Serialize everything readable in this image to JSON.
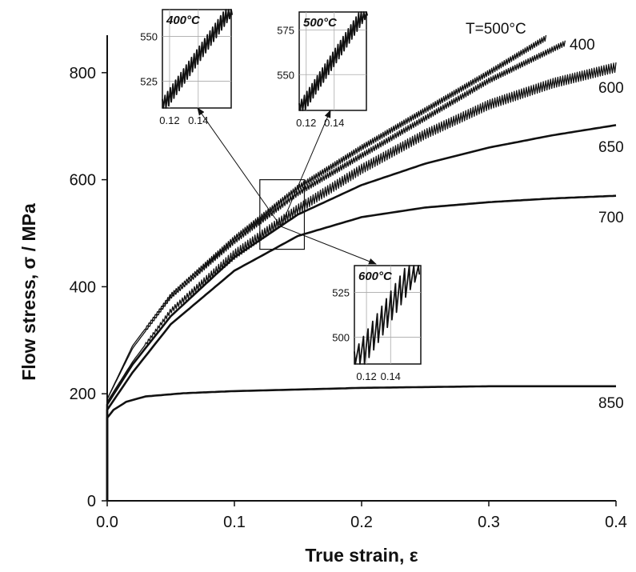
{
  "chart_data": {
    "type": "line",
    "xlabel": "True strain, ε",
    "ylabel": "Flow stress, σ / MPa",
    "xlim": [
      0,
      0.4
    ],
    "ylim": [
      0,
      870
    ],
    "x_ticks": [
      "0.0",
      "0.1",
      "0.2",
      "0.3",
      "0.4"
    ],
    "y_ticks": [
      "0",
      "200",
      "400",
      "600",
      "800"
    ],
    "grid": false,
    "series": [
      {
        "name": "T=500°C",
        "serrated": true,
        "points": [
          [
            0,
            190
          ],
          [
            0.02,
            290
          ],
          [
            0.05,
            385
          ],
          [
            0.1,
            490
          ],
          [
            0.15,
            585
          ],
          [
            0.2,
            660
          ],
          [
            0.25,
            730
          ],
          [
            0.3,
            800
          ],
          [
            0.345,
            865
          ]
        ]
      },
      {
        "name": "400",
        "serrated": true,
        "points": [
          [
            0,
            190
          ],
          [
            0.02,
            285
          ],
          [
            0.05,
            380
          ],
          [
            0.1,
            485
          ],
          [
            0.15,
            575
          ],
          [
            0.2,
            645
          ],
          [
            0.25,
            715
          ],
          [
            0.3,
            785
          ],
          [
            0.36,
            855
          ]
        ]
      },
      {
        "name": "600",
        "serrated": true,
        "points": [
          [
            0,
            185
          ],
          [
            0.02,
            260
          ],
          [
            0.05,
            355
          ],
          [
            0.1,
            460
          ],
          [
            0.15,
            545
          ],
          [
            0.2,
            620
          ],
          [
            0.25,
            685
          ],
          [
            0.3,
            740
          ],
          [
            0.35,
            780
          ],
          [
            0.4,
            810
          ]
        ]
      },
      {
        "name": "650",
        "serrated": false,
        "points": [
          [
            0,
            180
          ],
          [
            0.02,
            255
          ],
          [
            0.05,
            345
          ],
          [
            0.1,
            455
          ],
          [
            0.15,
            535
          ],
          [
            0.2,
            590
          ],
          [
            0.25,
            630
          ],
          [
            0.3,
            660
          ],
          [
            0.35,
            683
          ],
          [
            0.4,
            702
          ]
        ]
      },
      {
        "name": "700",
        "serrated": false,
        "points": [
          [
            0,
            170
          ],
          [
            0.02,
            240
          ],
          [
            0.05,
            330
          ],
          [
            0.1,
            430
          ],
          [
            0.15,
            495
          ],
          [
            0.2,
            530
          ],
          [
            0.25,
            548
          ],
          [
            0.3,
            558
          ],
          [
            0.35,
            565
          ],
          [
            0.4,
            570
          ]
        ]
      },
      {
        "name": "850",
        "serrated": false,
        "points": [
          [
            0,
            155
          ],
          [
            0.005,
            170
          ],
          [
            0.015,
            185
          ],
          [
            0.03,
            195
          ],
          [
            0.06,
            201
          ],
          [
            0.1,
            205
          ],
          [
            0.2,
            211
          ],
          [
            0.3,
            214
          ],
          [
            0.4,
            214
          ]
        ]
      }
    ],
    "zoom_box": {
      "x": [
        0.12,
        0.155
      ],
      "y": [
        470,
        600
      ]
    },
    "insets": [
      {
        "title": "400°C",
        "x_ticks": [
          "0.12",
          "0.14"
        ],
        "y_ticks": [
          "525",
          "550"
        ],
        "xlim": [
          0.115,
          0.163
        ],
        "ylim": [
          510,
          565
        ],
        "trend": [
          [
            0.115,
            512
          ],
          [
            0.163,
            567
          ]
        ],
        "grid": true
      },
      {
        "title": "500°C",
        "x_ticks": [
          "0.12",
          "0.14"
        ],
        "y_ticks": [
          "550",
          "575"
        ],
        "xlim": [
          0.115,
          0.163
        ],
        "ylim": [
          530,
          585
        ],
        "trend": [
          [
            0.115,
            531
          ],
          [
            0.163,
            588
          ]
        ],
        "grid": true
      },
      {
        "title": "600°C",
        "x_ticks": [
          "0.12",
          "0.14"
        ],
        "y_ticks": [
          "500",
          "525"
        ],
        "xlim": [
          0.11,
          0.165
        ],
        "ylim": [
          485,
          540
        ],
        "trend": [
          [
            0.11,
            486
          ],
          [
            0.163,
            545
          ]
        ],
        "grid": true
      }
    ]
  }
}
